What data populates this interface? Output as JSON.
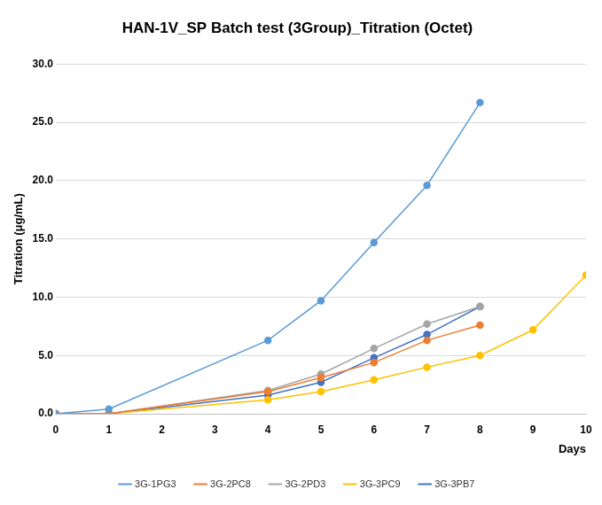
{
  "chart_data": {
    "type": "line",
    "title": "HAN-1V_SP Batch test (3Group)_Titration (Octet)",
    "x_label": "Days",
    "y_label": "Titration (μg/mL)",
    "xlim": [
      0,
      10
    ],
    "xticks": [
      0,
      1,
      2,
      3,
      4,
      5,
      6,
      7,
      8,
      9,
      10
    ],
    "ylim": [
      0,
      30
    ],
    "yticks": [
      {
        "value": 0,
        "label": "0.0"
      },
      {
        "value": 5,
        "label": "5.0"
      },
      {
        "value": 10,
        "label": "10.0"
      },
      {
        "value": 15,
        "label": "15.0"
      },
      {
        "value": 20,
        "label": "20.0"
      },
      {
        "value": 25,
        "label": "25.0"
      },
      {
        "value": 30,
        "label": "30.0"
      }
    ],
    "grid": true,
    "legend": "bottom",
    "marker": "circle",
    "series": [
      {
        "name": "3G-1PG3",
        "color": "#5B9BD5",
        "x": [
          0,
          1,
          4,
          5,
          6,
          7,
          8
        ],
        "values": [
          0,
          0.4,
          6.3,
          9.7,
          14.7,
          19.6,
          26.7
        ]
      },
      {
        "name": "3G-2PC8",
        "color": "#ED7D31",
        "x": [
          0,
          1,
          4,
          5,
          6,
          7,
          8
        ],
        "values": [
          0,
          0,
          1.9,
          3.1,
          4.4,
          6.3,
          7.6
        ]
      },
      {
        "name": "3G-2PD3",
        "color": "#A5A5A5",
        "x": [
          0,
          1,
          4,
          5,
          6,
          7,
          8
        ],
        "values": [
          0,
          0,
          2.0,
          3.4,
          5.6,
          7.7,
          9.2
        ]
      },
      {
        "name": "3G-3PC9",
        "color": "#FFC000",
        "x": [
          0,
          1,
          4,
          5,
          6,
          7,
          8,
          9,
          10
        ],
        "values": [
          0,
          0,
          1.2,
          1.9,
          2.9,
          4.0,
          5.0,
          7.2,
          11.9
        ]
      },
      {
        "name": "3G-3PB7",
        "color": "#4472C4",
        "x": [
          0,
          1,
          4,
          5,
          6,
          7,
          8
        ],
        "values": [
          0,
          0,
          1.6,
          2.7,
          4.8,
          6.8,
          9.2
        ]
      }
    ]
  }
}
